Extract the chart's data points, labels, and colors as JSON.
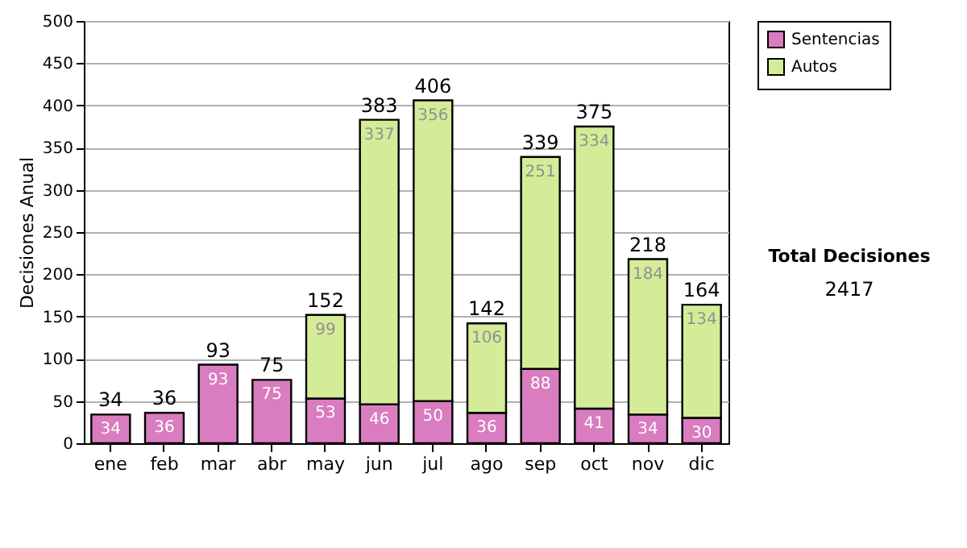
{
  "chart_data": {
    "type": "bar",
    "stacked": true,
    "categories": [
      "ene",
      "feb",
      "mar",
      "abr",
      "may",
      "jun",
      "jul",
      "ago",
      "sep",
      "oct",
      "nov",
      "dic"
    ],
    "series": [
      {
        "name": "Sentencias",
        "color": "#d97cc0",
        "values": [
          34,
          36,
          93,
          75,
          53,
          46,
          50,
          36,
          88,
          41,
          34,
          30
        ],
        "value_labels": [
          "34",
          "36",
          "93",
          "75",
          "53",
          "46",
          "50",
          "36",
          "88",
          "41",
          "34",
          "30"
        ]
      },
      {
        "name": "Autos",
        "color": "#d4ec98",
        "values": [
          0,
          0,
          0,
          0,
          99,
          337,
          356,
          106,
          251,
          334,
          184,
          134
        ],
        "value_labels": [
          null,
          null,
          null,
          null,
          "99",
          "337",
          "356",
          "106",
          "251",
          "334",
          "184",
          "134"
        ]
      }
    ],
    "totals": [
      "34",
      "36",
      "93",
      "75",
      "152",
      "383",
      "406",
      "142",
      "339",
      "375",
      "218",
      "164"
    ],
    "ylabel": "Decisiones Anual",
    "ylim": [
      0,
      500
    ],
    "yticks": [
      0,
      50,
      100,
      150,
      200,
      250,
      300,
      350,
      400,
      450,
      500
    ],
    "grid": "y",
    "legend": "right",
    "annotations": [
      "Total Decisiones",
      "2417"
    ]
  }
}
